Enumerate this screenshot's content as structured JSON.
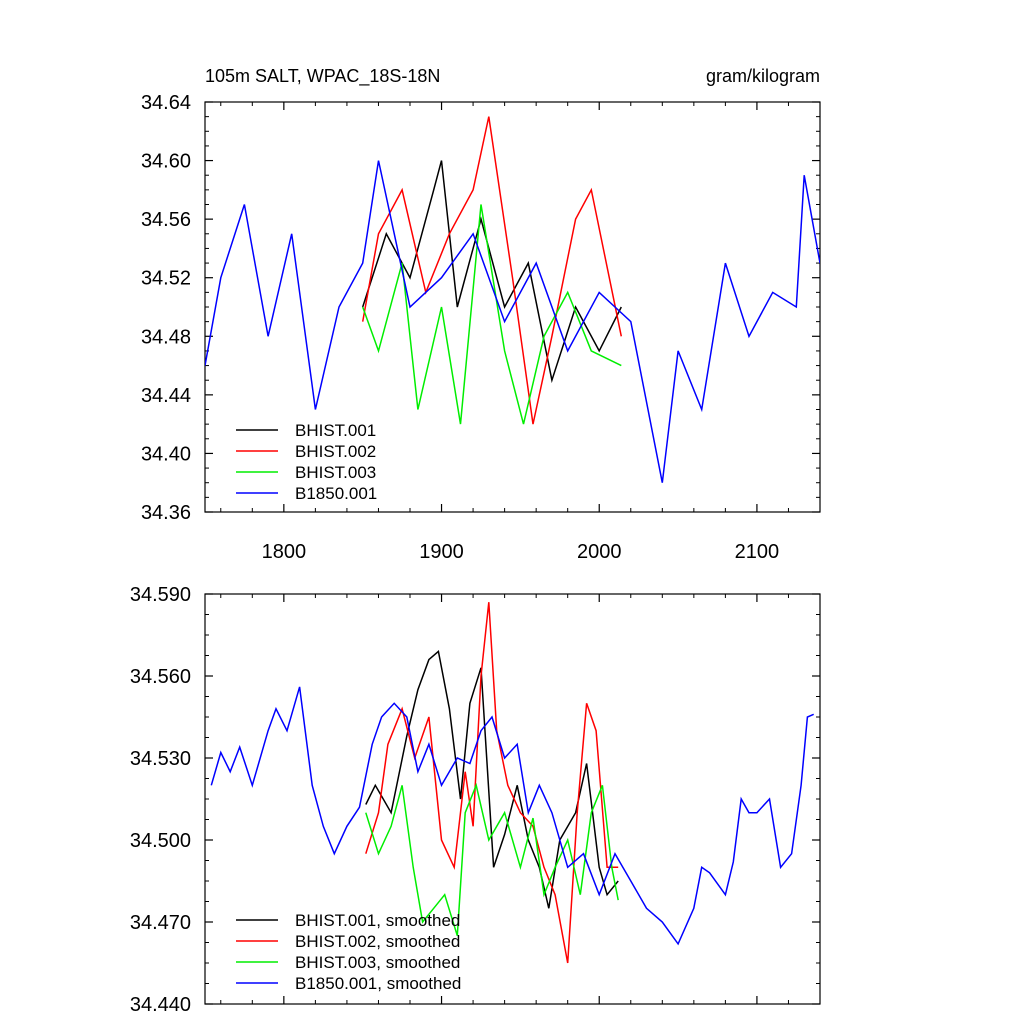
{
  "chart_data": [
    {
      "type": "line",
      "title": "105m SALT, WPAC_18S-18N",
      "units": "gram/kilogram",
      "xlim": [
        1750,
        2140
      ],
      "ylim": [
        34.36,
        34.64
      ],
      "xticks": [
        1800,
        1900,
        2000,
        2100
      ],
      "xtick_labels": [
        "1800",
        "1900",
        "2000",
        "2100"
      ],
      "yticks": [
        34.36,
        34.4,
        34.44,
        34.48,
        34.52,
        34.56,
        34.6,
        34.64
      ],
      "ytick_labels": [
        "34.36",
        "34.40",
        "34.44",
        "34.48",
        "34.52",
        "34.56",
        "34.60",
        "34.64"
      ],
      "legend_position": "bottom-left",
      "series": [
        {
          "name": "BHIST.001",
          "color": "#000000",
          "x": [
            1850,
            1865,
            1880,
            1895,
            1900,
            1910,
            1925,
            1940,
            1955,
            1970,
            1985,
            2000,
            2014
          ],
          "y": [
            34.5,
            34.55,
            34.52,
            34.58,
            34.6,
            34.5,
            34.56,
            34.5,
            34.53,
            34.45,
            34.5,
            34.47,
            34.5
          ]
        },
        {
          "name": "BHIST.002",
          "color": "#ff0000",
          "x": [
            1850,
            1860,
            1875,
            1890,
            1905,
            1920,
            1930,
            1945,
            1958,
            1970,
            1985,
            1995,
            2014
          ],
          "y": [
            34.49,
            34.55,
            34.58,
            34.51,
            34.55,
            34.58,
            34.63,
            34.52,
            34.42,
            34.48,
            34.56,
            34.58,
            34.48
          ]
        },
        {
          "name": "BHIST.003",
          "color": "#00ee00",
          "x": [
            1850,
            1860,
            1875,
            1885,
            1900,
            1912,
            1925,
            1940,
            1952,
            1965,
            1980,
            1995,
            2014
          ],
          "y": [
            34.5,
            34.47,
            34.53,
            34.43,
            34.5,
            34.42,
            34.57,
            34.47,
            34.42,
            34.48,
            34.51,
            34.47,
            34.46
          ]
        },
        {
          "name": "B1850.001",
          "color": "#0000ff",
          "x": [
            1750,
            1760,
            1775,
            1790,
            1805,
            1820,
            1835,
            1850,
            1860,
            1880,
            1900,
            1920,
            1940,
            1960,
            1980,
            2000,
            2020,
            2040,
            2050,
            2065,
            2080,
            2095,
            2110,
            2125,
            2130,
            2140
          ],
          "y": [
            34.46,
            34.52,
            34.57,
            34.48,
            34.55,
            34.43,
            34.5,
            34.53,
            34.6,
            34.5,
            34.52,
            34.55,
            34.49,
            34.53,
            34.47,
            34.51,
            34.49,
            34.38,
            34.47,
            34.43,
            34.53,
            34.48,
            34.51,
            34.5,
            34.59,
            34.53
          ]
        }
      ]
    },
    {
      "type": "line",
      "xlim": [
        1750,
        2140
      ],
      "ylim": [
        34.44,
        34.59
      ],
      "xticks": [
        1800,
        1900,
        2000,
        2100
      ],
      "yticks": [
        34.44,
        34.47,
        34.5,
        34.53,
        34.56,
        34.59
      ],
      "ytick_labels": [
        "34.440",
        "34.470",
        "34.500",
        "34.530",
        "34.560",
        "34.590"
      ],
      "legend_position": "bottom-left",
      "series": [
        {
          "name": "BHIST.001, smoothed",
          "color": "#000000",
          "x": [
            1852,
            1858,
            1868,
            1878,
            1885,
            1892,
            1898,
            1905,
            1912,
            1918,
            1925,
            1933,
            1940,
            1948,
            1955,
            1962,
            1968,
            1975,
            1985,
            1992,
            2000,
            2005,
            2012
          ],
          "y": [
            34.513,
            34.52,
            34.51,
            34.538,
            34.555,
            34.566,
            34.569,
            34.548,
            34.515,
            34.55,
            34.563,
            34.49,
            34.502,
            34.52,
            34.5,
            34.49,
            34.475,
            34.5,
            34.51,
            34.528,
            34.49,
            34.48,
            34.485
          ]
        },
        {
          "name": "BHIST.002, smoothed",
          "color": "#ff0000",
          "x": [
            1852,
            1860,
            1866,
            1875,
            1883,
            1892,
            1900,
            1908,
            1915,
            1920,
            1925,
            1930,
            1935,
            1942,
            1950,
            1958,
            1965,
            1972,
            1980,
            1986,
            1992,
            1998,
            2005,
            2012
          ],
          "y": [
            34.495,
            34.51,
            34.535,
            34.548,
            34.53,
            34.545,
            34.5,
            34.49,
            34.525,
            34.505,
            34.56,
            34.587,
            34.54,
            34.52,
            34.51,
            34.505,
            34.49,
            34.48,
            34.455,
            34.51,
            34.55,
            34.54,
            34.49,
            34.49
          ]
        },
        {
          "name": "BHIST.003, smoothed",
          "color": "#00ee00",
          "x": [
            1852,
            1860,
            1868,
            1875,
            1882,
            1888,
            1895,
            1902,
            1910,
            1915,
            1922,
            1930,
            1940,
            1950,
            1958,
            1965,
            1972,
            1980,
            1988,
            1995,
            2002,
            2008,
            2012
          ],
          "y": [
            34.51,
            34.495,
            34.505,
            34.52,
            34.49,
            34.47,
            34.475,
            34.48,
            34.465,
            34.51,
            34.52,
            34.5,
            34.51,
            34.49,
            34.508,
            34.48,
            34.49,
            34.5,
            34.48,
            34.51,
            34.52,
            34.49,
            34.478
          ]
        },
        {
          "name": "B1850.001, smoothed",
          "color": "#0000ff",
          "x": [
            1754,
            1760,
            1766,
            1772,
            1780,
            1790,
            1795,
            1802,
            1810,
            1818,
            1825,
            1832,
            1840,
            1848,
            1856,
            1862,
            1870,
            1878,
            1885,
            1892,
            1900,
            1910,
            1918,
            1925,
            1932,
            1940,
            1948,
            1955,
            1962,
            1970,
            1980,
            1990,
            2000,
            2010,
            2020,
            2030,
            2040,
            2050,
            2060,
            2065,
            2070,
            2080,
            2085,
            2090,
            2095,
            2100,
            2108,
            2115,
            2122,
            2128,
            2132,
            2136
          ],
          "y": [
            34.52,
            34.532,
            34.525,
            34.534,
            34.52,
            34.54,
            34.548,
            34.54,
            34.556,
            34.52,
            34.505,
            34.495,
            34.505,
            34.512,
            34.535,
            34.545,
            34.55,
            34.545,
            34.525,
            34.535,
            34.52,
            34.53,
            34.528,
            34.54,
            34.545,
            34.53,
            34.535,
            34.51,
            34.52,
            34.51,
            34.49,
            34.495,
            34.48,
            34.495,
            34.485,
            34.475,
            34.47,
            34.462,
            34.475,
            34.49,
            34.488,
            34.48,
            34.492,
            34.515,
            34.51,
            34.51,
            34.515,
            34.49,
            34.495,
            34.52,
            34.545,
            34.546
          ]
        }
      ]
    }
  ]
}
